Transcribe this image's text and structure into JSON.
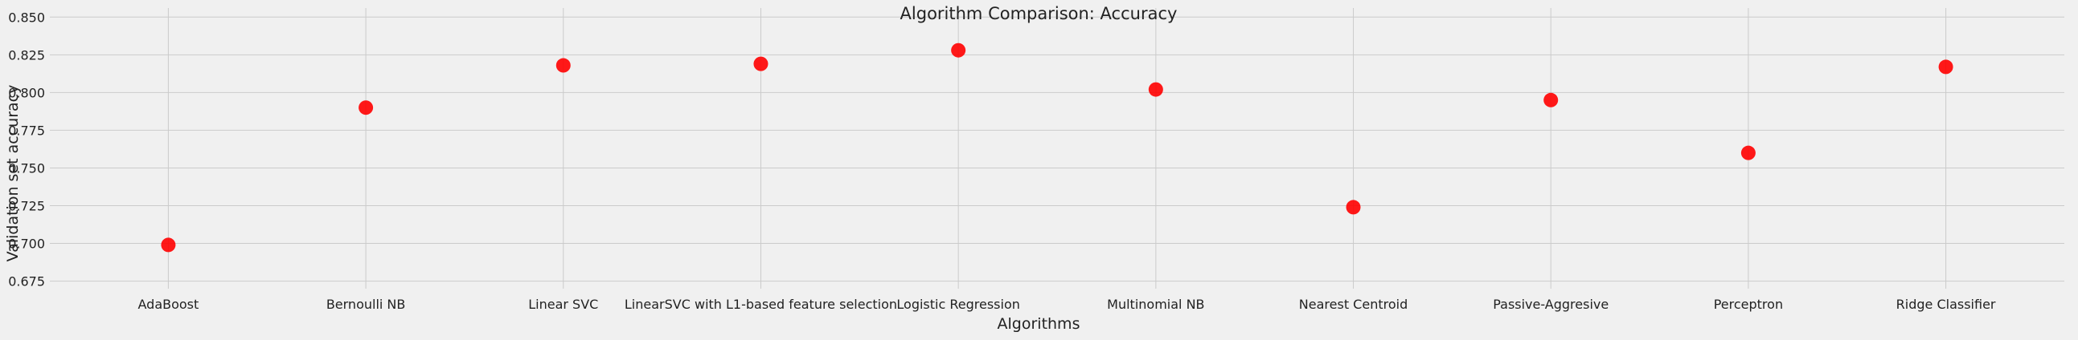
{
  "chart_data": {
    "type": "scatter",
    "title": "Algorithm Comparison: Accuracy",
    "xlabel": "Algorithms",
    "ylabel": "Validation set accuracy",
    "categories": [
      "AdaBoost",
      "Bernoulli NB",
      "Linear SVC",
      "LinearSVC with L1-based feature selection",
      "Logistic Regression",
      "Multinomial NB",
      "Nearest Centroid",
      "Passive-Aggresive",
      "Perceptron",
      "Ridge Classifier"
    ],
    "values": [
      0.699,
      0.79,
      0.818,
      0.819,
      0.828,
      0.802,
      0.724,
      0.795,
      0.76,
      0.817
    ],
    "ylim": [
      0.67,
      0.856
    ],
    "yticks": [
      "0.675",
      "0.700",
      "0.725",
      "0.750",
      "0.775",
      "0.800",
      "0.825",
      "0.850"
    ],
    "grid": true,
    "marker_color": "#ff0000",
    "background_color": "#f0f0f0",
    "grid_color": "#cbcbcb"
  }
}
